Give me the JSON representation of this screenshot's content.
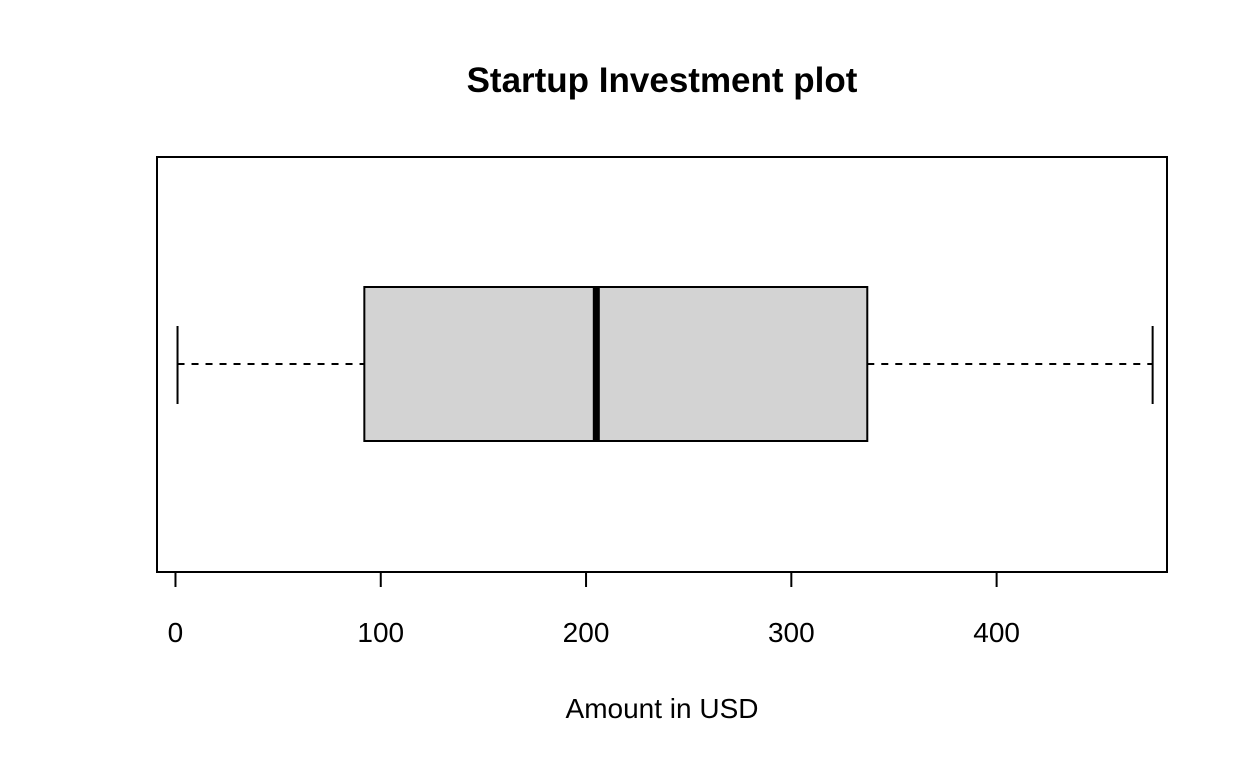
{
  "chart_data": {
    "type": "boxplot",
    "orientation": "horizontal",
    "title": "Startup Investment plot",
    "xlabel": "Amount in USD",
    "ylabel": "",
    "xlim": [
      -9,
      483
    ],
    "xticks": [
      0,
      100,
      200,
      300,
      400
    ],
    "xtick_labels": [
      "0",
      "100",
      "200",
      "300",
      "400"
    ],
    "grid": false,
    "legend": "none",
    "box": {
      "min": 1,
      "q1": 92,
      "median": 205,
      "q3": 337,
      "max": 476
    },
    "colors": {
      "box_fill": "#d3d3d3",
      "stroke": "#000000"
    }
  }
}
